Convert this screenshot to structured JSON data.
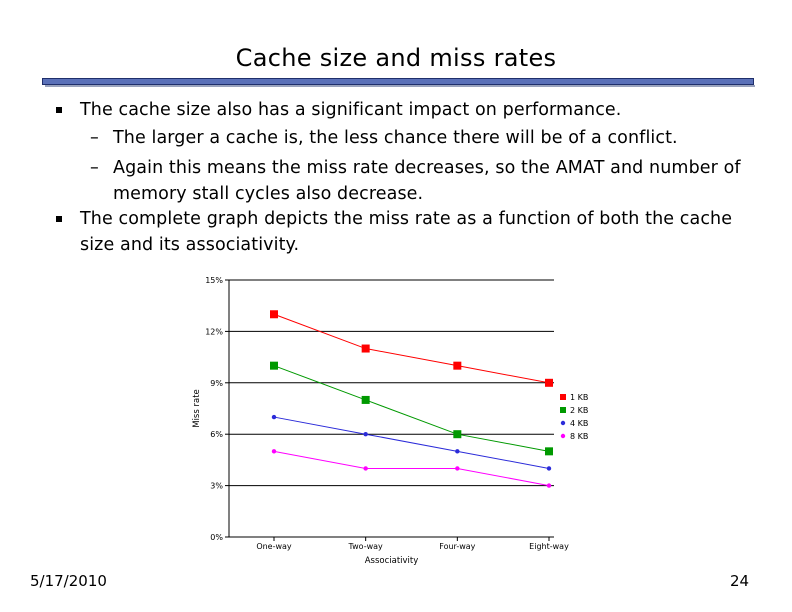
{
  "slide": {
    "title": "Cache size and miss rates",
    "date": "5/17/2010",
    "page_number": "24"
  },
  "bullets": [
    {
      "level": 1,
      "text": "The cache size also has a significant impact on performance."
    },
    {
      "level": 2,
      "text": "The larger a cache is, the less chance there will be of a conflict."
    },
    {
      "level": 2,
      "text": "Again this means the miss rate decreases, so the AMAT and number of memory stall cycles also decrease."
    },
    {
      "level": 1,
      "text": "The complete graph depicts the miss rate as a function of both the cache size and its associativity."
    }
  ],
  "chart_data": {
    "type": "line",
    "xlabel": "Associativity",
    "ylabel": "Miss rate",
    "categories": [
      "One-way",
      "Two-way",
      "Four-way",
      "Eight-way"
    ],
    "ylim": [
      0,
      15
    ],
    "yticks": [
      "0%",
      "3%",
      "6%",
      "9%",
      "12%",
      "15%"
    ],
    "grid": true,
    "legend_position": "right",
    "series": [
      {
        "name": "1 KB",
        "values": [
          13,
          11,
          10,
          9
        ],
        "color": "#ff0000",
        "marker": "square"
      },
      {
        "name": "2 KB",
        "values": [
          10,
          8,
          6,
          5
        ],
        "color": "#009900",
        "marker": "square"
      },
      {
        "name": "4 KB",
        "values": [
          7,
          6,
          5,
          4
        ],
        "color": "#2b2bd9",
        "marker": "circle"
      },
      {
        "name": "8 KB",
        "values": [
          5,
          4,
          4,
          3
        ],
        "color": "#ff00ff",
        "marker": "circle"
      }
    ]
  }
}
